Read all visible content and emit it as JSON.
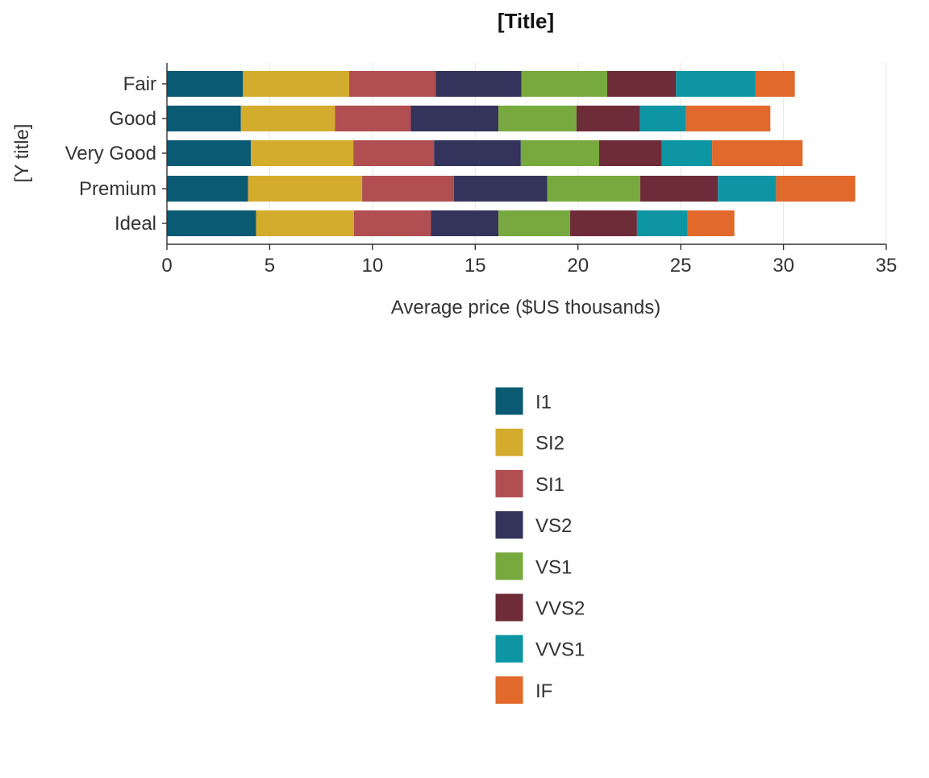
{
  "chart_data": {
    "type": "bar",
    "orientation": "horizontal",
    "stacked": true,
    "title": "[Title]",
    "xlabel": "Average price ($US thousands)",
    "ylabel": "[Y title]",
    "xlim": [
      0,
      35
    ],
    "xticks": [
      0,
      5,
      10,
      15,
      20,
      25,
      30,
      35
    ],
    "grid": "vertical-major",
    "legend_position": "bottom",
    "categories": [
      "Fair",
      "Good",
      "Very Good",
      "Premium",
      "Ideal"
    ],
    "series": [
      {
        "name": "I1",
        "color": "#0b5a74",
        "values": [
          3.7,
          3.6,
          4.08,
          3.95,
          4.34
        ]
      },
      {
        "name": "SI2",
        "color": "#d4ac2d",
        "values": [
          5.17,
          4.58,
          4.99,
          5.55,
          4.76
        ]
      },
      {
        "name": "SI1",
        "color": "#b04e52",
        "values": [
          4.21,
          3.69,
          3.93,
          4.46,
          3.75
        ]
      },
      {
        "name": "VS2",
        "color": "#33335c",
        "values": [
          4.17,
          4.26,
          4.22,
          4.55,
          3.28
        ]
      },
      {
        "name": "VS1",
        "color": "#77a93f",
        "values": [
          4.17,
          3.8,
          3.81,
          4.52,
          3.49
        ]
      },
      {
        "name": "VVS2",
        "color": "#6d2c38",
        "values": [
          3.35,
          3.08,
          3.04,
          3.78,
          3.25
        ]
      },
      {
        "name": "VVS1",
        "color": "#0e95a4",
        "values": [
          3.87,
          2.25,
          2.46,
          2.83,
          2.47
        ]
      },
      {
        "name": "IF",
        "color": "#e0692b",
        "values": [
          1.91,
          4.1,
          4.4,
          3.85,
          2.27
        ]
      }
    ]
  }
}
